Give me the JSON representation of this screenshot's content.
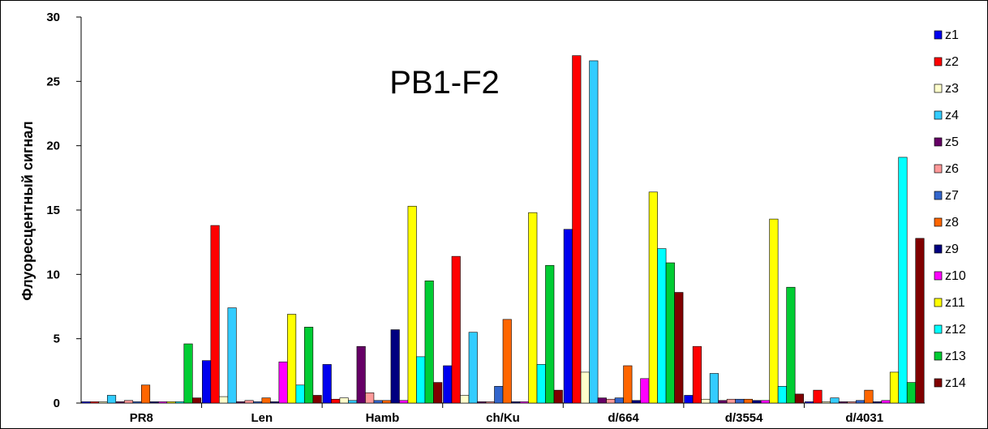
{
  "chart_data": {
    "type": "bar",
    "title": "PB1-F2",
    "ylabel": "Флуоресцентный сигнал",
    "xlabel": "",
    "ylim": [
      0,
      30
    ],
    "yticks": [
      "0",
      "5",
      "10",
      "15",
      "20",
      "25",
      "30"
    ],
    "grid": false,
    "legend_position": "right",
    "categories": [
      "PR8",
      "Len",
      "Hamb",
      "ch/Ku",
      "d/664",
      "d/3554",
      "d/4031"
    ],
    "series": [
      {
        "name": "z1",
        "color": "#0000ee",
        "values": [
          0.1,
          3.3,
          3.0,
          2.9,
          13.5,
          0.6,
          0.1
        ]
      },
      {
        "name": "z2",
        "color": "#ff0000",
        "values": [
          0.1,
          13.8,
          0.3,
          11.4,
          27.0,
          4.4,
          1.0
        ]
      },
      {
        "name": "z3",
        "color": "#ffffcc",
        "values": [
          0.1,
          0.5,
          0.4,
          0.6,
          2.4,
          0.3,
          0.1
        ]
      },
      {
        "name": "z4",
        "color": "#33ccff",
        "values": [
          0.6,
          7.4,
          0.2,
          5.5,
          26.6,
          2.3,
          0.4
        ]
      },
      {
        "name": "z5",
        "color": "#660066",
        "values": [
          0.1,
          0.1,
          4.4,
          0.1,
          0.4,
          0.2,
          0.1
        ]
      },
      {
        "name": "z6",
        "color": "#ff9999",
        "values": [
          0.2,
          0.2,
          0.8,
          0.1,
          0.3,
          0.3,
          0.1
        ]
      },
      {
        "name": "z7",
        "color": "#3366cc",
        "values": [
          0.1,
          0.1,
          0.2,
          1.3,
          0.4,
          0.3,
          0.2
        ]
      },
      {
        "name": "z8",
        "color": "#ff6600",
        "values": [
          1.4,
          0.4,
          0.2,
          6.5,
          2.9,
          0.3,
          1.0
        ]
      },
      {
        "name": "z9",
        "color": "#000080",
        "values": [
          0.1,
          0.1,
          5.7,
          0.1,
          0.2,
          0.2,
          0.1
        ]
      },
      {
        "name": "z10",
        "color": "#ff00ff",
        "values": [
          0.1,
          3.2,
          0.2,
          0.1,
          1.9,
          0.2,
          0.2
        ]
      },
      {
        "name": "z11",
        "color": "#ffff00",
        "values": [
          0.1,
          6.9,
          15.3,
          14.8,
          16.4,
          14.3,
          2.4
        ]
      },
      {
        "name": "z12",
        "color": "#00ffff",
        "values": [
          0.1,
          1.4,
          3.6,
          3.0,
          12.0,
          1.3,
          19.1
        ]
      },
      {
        "name": "z13",
        "color": "#00cc33",
        "values": [
          4.6,
          5.9,
          9.5,
          10.7,
          10.9,
          9.0,
          1.6
        ]
      },
      {
        "name": "z14",
        "color": "#800000",
        "values": [
          0.4,
          0.6,
          1.6,
          1.0,
          8.6,
          0.7,
          12.8
        ]
      }
    ]
  }
}
